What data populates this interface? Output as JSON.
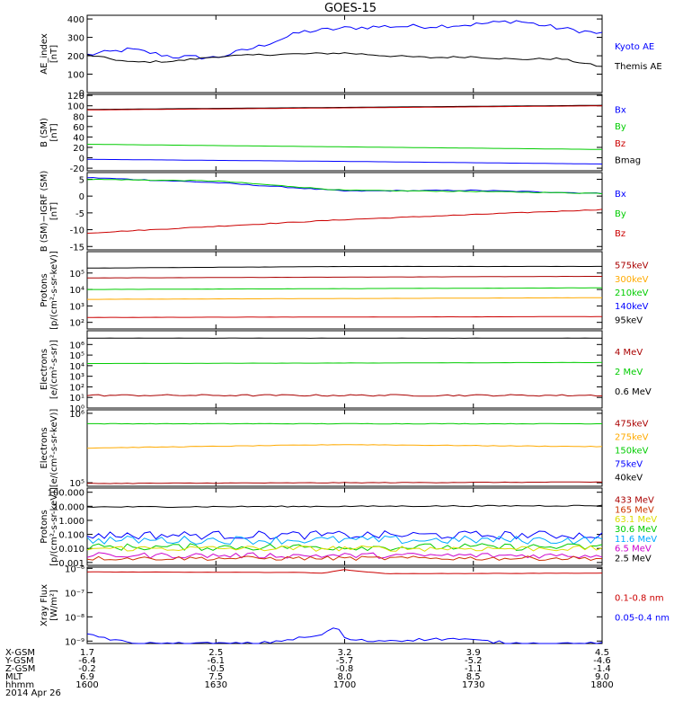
{
  "title": "GOES-15",
  "colors": {
    "black": "#000000",
    "blue": "#0000ff",
    "green": "#00cc00",
    "red": "#cc0000",
    "darkred": "#aa0000",
    "orange": "#ffaa00",
    "cyan": "#00aaff",
    "yellow": "#dddd00",
    "magenta": "#cc00cc",
    "brownred": "#cc3300"
  },
  "chart_data": [
    {
      "type": "line",
      "panel": "ae",
      "ylabel": [
        "AE_index",
        "[nT]"
      ],
      "ylim": [
        0,
        420
      ],
      "yticks": [
        {
          "v": 0,
          "t": "0"
        },
        {
          "v": 100,
          "t": "100"
        },
        {
          "v": 200,
          "t": "200"
        },
        {
          "v": 300,
          "t": "300"
        },
        {
          "v": 400,
          "t": "400"
        }
      ],
      "series": [
        {
          "name": "Kyoto AE",
          "color": "#0000ff",
          "x": [
            1600,
            1610,
            1620,
            1630,
            1640,
            1650,
            1700,
            1710,
            1720,
            1730,
            1740,
            1750,
            1800
          ],
          "y": [
            205,
            235,
            195,
            190,
            250,
            330,
            350,
            360,
            360,
            370,
            390,
            350,
            320
          ],
          "noise": 12
        },
        {
          "name": "Themis AE",
          "color": "#000000",
          "x": [
            1600,
            1610,
            1620,
            1630,
            1640,
            1650,
            1700,
            1710,
            1720,
            1730,
            1740,
            1750,
            1800
          ],
          "y": [
            205,
            165,
            170,
            195,
            205,
            210,
            215,
            200,
            190,
            195,
            180,
            185,
            140
          ],
          "noise": 5
        }
      ],
      "legend": [
        {
          "label": "Kyoto AE",
          "color": "#0000ff"
        },
        {
          "label": "Themis AE",
          "color": "#000000"
        }
      ]
    },
    {
      "type": "line",
      "panel": "b_sm",
      "ylabel": [
        "B (SM)",
        "[nT]"
      ],
      "ylim": [
        -25,
        122
      ],
      "yticks": [
        {
          "v": -20,
          "t": "-20"
        },
        {
          "v": 0,
          "t": "0"
        },
        {
          "v": 20,
          "t": "20"
        },
        {
          "v": 40,
          "t": "40"
        },
        {
          "v": 60,
          "t": "60"
        },
        {
          "v": 80,
          "t": "80"
        },
        {
          "v": 100,
          "t": "100"
        },
        {
          "v": 120,
          "t": "120"
        }
      ],
      "series": [
        {
          "name": "Bmag",
          "color": "#000000",
          "x": [
            1600,
            1800
          ],
          "y": [
            93,
            101
          ],
          "noise": 0
        },
        {
          "name": "Bz",
          "color": "#cc0000",
          "x": [
            1600,
            1800
          ],
          "y": [
            92,
            100
          ],
          "noise": 0
        },
        {
          "name": "By",
          "color": "#00cc00",
          "x": [
            1600,
            1700,
            1800
          ],
          "y": [
            26,
            21,
            16
          ],
          "noise": 0
        },
        {
          "name": "Bx",
          "color": "#0000ff",
          "x": [
            1600,
            1700,
            1800
          ],
          "y": [
            -3,
            -7,
            -12
          ],
          "noise": 0
        }
      ],
      "legend": [
        {
          "label": "Bx",
          "color": "#0000ff"
        },
        {
          "label": "By",
          "color": "#00cc00"
        },
        {
          "label": "Bz",
          "color": "#cc0000"
        },
        {
          "label": "Bmag",
          "color": "#000000"
        }
      ]
    },
    {
      "type": "line",
      "panel": "b_igrf",
      "ylabel": [
        "B (SM)−IGRF (SM)",
        "[nT]"
      ],
      "ylim": [
        -16,
        7
      ],
      "yticks": [
        {
          "v": -15,
          "t": "-15"
        },
        {
          "v": -10,
          "t": "-10"
        },
        {
          "v": -5,
          "t": "-5"
        },
        {
          "v": 0,
          "t": "0"
        },
        {
          "v": 5,
          "t": "5"
        }
      ],
      "series": [
        {
          "name": "Bx",
          "color": "#0000ff",
          "x": [
            1600,
            1630,
            1700,
            1730,
            1800
          ],
          "y": [
            5.5,
            4,
            1.5,
            1.7,
            0.8
          ],
          "noise": 0.15
        },
        {
          "name": "By",
          "color": "#00cc00",
          "x": [
            1600,
            1630,
            1700,
            1730,
            1800
          ],
          "y": [
            5,
            4.5,
            1.7,
            1.4,
            0.8
          ],
          "noise": 0.12
        },
        {
          "name": "Bz",
          "color": "#cc0000",
          "x": [
            1600,
            1630,
            1700,
            1730,
            1800
          ],
          "y": [
            -11,
            -9,
            -7,
            -5.5,
            -4
          ],
          "noise": 0.12
        }
      ],
      "legend": [
        {
          "label": "Bx",
          "color": "#0000ff"
        },
        {
          "label": "By",
          "color": "#00cc00"
        },
        {
          "label": "Bz",
          "color": "#cc0000"
        }
      ]
    },
    {
      "type": "line",
      "panel": "protons_kev",
      "log": true,
      "ylabel": [
        "Protons",
        "[p/(cm²-s-sr-keV)]"
      ],
      "ylim": [
        1.6,
        6.3
      ],
      "yticks": [
        {
          "v": 2,
          "t": "10²"
        },
        {
          "v": 3,
          "t": "10³"
        },
        {
          "v": 4,
          "t": "10⁴"
        },
        {
          "v": 5,
          "t": "10⁵"
        }
      ],
      "series": [
        {
          "name": "575keV",
          "color": "#000000",
          "x": [
            1600,
            1630,
            1700,
            1800
          ],
          "y": [
            5.3,
            5.35,
            5.4,
            5.4
          ],
          "noise": 0.005
        },
        {
          "name": "300keV",
          "color": "#aa0000",
          "x": [
            1600,
            1800
          ],
          "y": [
            4.7,
            4.8
          ],
          "noise": 0.005
        },
        {
          "name": "210keV",
          "color": "#00cc00",
          "x": [
            1600,
            1800
          ],
          "y": [
            4.0,
            4.1
          ],
          "noise": 0.005
        },
        {
          "name": "140keV",
          "color": "#ffaa00",
          "x": [
            1600,
            1800
          ],
          "y": [
            3.4,
            3.5
          ],
          "noise": 0.005
        },
        {
          "name": "95keV",
          "color": "#cc0000",
          "x": [
            1600,
            1800
          ],
          "y": [
            2.3,
            2.35
          ],
          "noise": 0.005
        }
      ],
      "legend": [
        {
          "label": "575keV",
          "color": "#aa0000"
        },
        {
          "label": "300keV",
          "color": "#ffaa00"
        },
        {
          "label": "210keV",
          "color": "#00cc00"
        },
        {
          "label": "140keV",
          "color": "#0000ff"
        },
        {
          "label": "95keV",
          "color": "#000000"
        }
      ]
    },
    {
      "type": "line",
      "panel": "electrons_mev",
      "log": true,
      "ylabel": [
        "Electrons",
        "[e/(cm²-s-sr)]"
      ],
      "ylim": [
        0,
        7.3
      ],
      "yticks": [
        {
          "v": 0,
          "t": "10⁰"
        },
        {
          "v": 1,
          "t": "10¹"
        },
        {
          "v": 2,
          "t": "10²"
        },
        {
          "v": 3,
          "t": "10³"
        },
        {
          "v": 4,
          "t": "10⁴"
        },
        {
          "v": 5,
          "t": "10⁵"
        },
        {
          "v": 6,
          "t": "10⁶"
        }
      ],
      "series": [
        {
          "name": "4 MeV",
          "color": "#000000",
          "x": [
            1600,
            1800
          ],
          "y": [
            6.6,
            6.6
          ],
          "noise": 0.01
        },
        {
          "name": "2 MeV",
          "color": "#00cc00",
          "x": [
            1600,
            1800
          ],
          "y": [
            4.2,
            4.3
          ],
          "noise": 0.01
        },
        {
          "name": "0.6 MeV",
          "color": "#aa0000",
          "x": [
            1600,
            1800
          ],
          "y": [
            1.2,
            1.2
          ],
          "noise": 0.08
        }
      ],
      "legend": [
        {
          "label": "4 MeV",
          "color": "#aa0000"
        },
        {
          "label": "2 MeV",
          "color": "#00cc00"
        },
        {
          "label": "0.6 MeV",
          "color": "#000000"
        }
      ]
    },
    {
      "type": "line",
      "panel": "electrons_kev",
      "log": true,
      "ylabel": [
        "Electrons",
        "[e/(cm²-s-sr-keV)]"
      ],
      "ylim": [
        4.95,
        6.05
      ],
      "yticks": [
        {
          "v": 5,
          "t": "10⁵"
        },
        {
          "v": 6,
          "t": "10⁶"
        }
      ],
      "series": [
        {
          "name": "475keV",
          "color": "#00cc00",
          "x": [
            1600,
            1800
          ],
          "y": [
            5.85,
            5.85
          ],
          "noise": 0.004
        },
        {
          "name": "275keV",
          "color": "#ffaa00",
          "x": [
            1600,
            1700,
            1800
          ],
          "y": [
            5.5,
            5.55,
            5.52
          ],
          "noise": 0.004
        },
        {
          "name": "40keV",
          "color": "#aa0000",
          "x": [
            1600,
            1800
          ],
          "y": [
            4.99,
            5.01
          ],
          "noise": 0.004
        }
      ],
      "legend": [
        {
          "label": "475keV",
          "color": "#aa0000"
        },
        {
          "label": "275keV",
          "color": "#ffaa00"
        },
        {
          "label": "150keV",
          "color": "#00cc00"
        },
        {
          "label": "75keV",
          "color": "#0000ff"
        },
        {
          "label": "40keV",
          "color": "#000000"
        }
      ]
    },
    {
      "type": "line",
      "panel": "protons_mev",
      "log": true,
      "ylabel": [
        "Protons",
        "[p/(cm²-s-sr-keV)]"
      ],
      "ylim": [
        -3.2,
        2.3
      ],
      "yticks": [
        {
          "v": -3,
          "t": "0.001"
        },
        {
          "v": -2,
          "t": "0.010"
        },
        {
          "v": -1,
          "t": "0.100"
        },
        {
          "v": 0,
          "t": "1.000"
        },
        {
          "v": 1,
          "t": "10.000"
        },
        {
          "v": 2,
          "t": "100.000"
        }
      ],
      "series": [
        {
          "name": "433 MeV",
          "color": "#000000",
          "x": [
            1600,
            1800
          ],
          "y": [
            0.95,
            1.05
          ],
          "noise": 0.04
        },
        {
          "name": "11.6 MeV",
          "color": "#0000ff",
          "x": [
            1600,
            1800
          ],
          "y": [
            -1.05,
            -1.05
          ],
          "noise": 0.3
        },
        {
          "name": "30.6 MeV",
          "color": "#00aaff",
          "x": [
            1600,
            1800
          ],
          "y": [
            -1.4,
            -1.4
          ],
          "noise": 0.3
        },
        {
          "name": "63.1 MeV",
          "color": "#00cc00",
          "x": [
            1600,
            1800
          ],
          "y": [
            -1.9,
            -1.9
          ],
          "noise": 0.25
        },
        {
          "name": "165 MeV",
          "color": "#dddd00",
          "x": [
            1600,
            1800
          ],
          "y": [
            -2.0,
            -2.0
          ],
          "noise": 0.2
        },
        {
          "name": "6.5 MeV",
          "color": "#cc00cc",
          "x": [
            1600,
            1800
          ],
          "y": [
            -2.5,
            -2.5
          ],
          "noise": 0.2
        },
        {
          "name": "2.5 MeV",
          "color": "#cc3300",
          "x": [
            1600,
            1800
          ],
          "y": [
            -2.7,
            -2.7
          ],
          "noise": 0.15
        }
      ],
      "legend": [
        {
          "label": "433 MeV",
          "color": "#aa0000"
        },
        {
          "label": "165 MeV",
          "color": "#cc3300"
        },
        {
          "label": "63.1 MeV",
          "color": "#dddd00"
        },
        {
          "label": "30.6 MeV",
          "color": "#00cc00"
        },
        {
          "label": "11.6 MeV",
          "color": "#00aaff"
        },
        {
          "label": "6.5 MeV",
          "color": "#cc00cc"
        },
        {
          "label": "2.5 MeV",
          "color": "#000000"
        }
      ]
    },
    {
      "type": "line",
      "panel": "xray",
      "log": true,
      "ylabel": [
        "Xray Flux",
        "[W/m²]"
      ],
      "ylim": [
        -9.1,
        -5.95
      ],
      "yticks": [
        {
          "v": -9,
          "t": "10⁻⁹"
        },
        {
          "v": -8,
          "t": "10⁻⁸"
        },
        {
          "v": -7,
          "t": "10⁻⁷"
        },
        {
          "v": -6,
          "t": "10⁻⁶"
        }
      ],
      "series": [
        {
          "name": "0.1-0.8 nm",
          "color": "#cc0000",
          "x": [
            1600,
            1650,
            1655,
            1700,
            1705,
            1710,
            1800
          ],
          "y": [
            -6.15,
            -6.17,
            -6.2,
            -6.05,
            -6.15,
            -6.22,
            -6.2
          ],
          "noise": 0.005
        },
        {
          "name": "0.05-0.4 nm",
          "color": "#0000ff",
          "x": [
            1600,
            1610,
            1640,
            1655,
            1658,
            1700,
            1705,
            1725,
            1740,
            1800
          ],
          "y": [
            -8.7,
            -9.1,
            -9.1,
            -8.75,
            -8.35,
            -8.9,
            -9.0,
            -8.9,
            -9.1,
            -9.1
          ],
          "noise": 0.06
        }
      ],
      "legend": [
        {
          "label": "0.1-0.8 nm",
          "color": "#cc0000"
        },
        {
          "label": "0.05-0.4 nm",
          "color": "#0000ff"
        }
      ]
    }
  ],
  "x_axis": {
    "range": [
      1600,
      1800
    ],
    "ticks": [
      1600,
      1630,
      1700,
      1730,
      1800
    ],
    "rows": [
      {
        "label": "X-GSM",
        "values": [
          "1.7",
          "2.5",
          "3.2",
          "3.9",
          "4.5"
        ]
      },
      {
        "label": "Y-GSM",
        "values": [
          "-6.4",
          "-6.1",
          "-5.7",
          "-5.2",
          "-4.6"
        ]
      },
      {
        "label": "Z-GSM",
        "values": [
          "-0.2",
          "-0.5",
          "-0.8",
          "-1.1",
          "-1.4"
        ]
      },
      {
        "label": "MLT",
        "values": [
          "6.9",
          "7.5",
          "8.0",
          "8.5",
          "9.0"
        ]
      },
      {
        "label": "hhmm",
        "values": [
          "1600",
          "1630",
          "1700",
          "1730",
          "1800"
        ]
      }
    ],
    "date": "2014 Apr 26"
  }
}
